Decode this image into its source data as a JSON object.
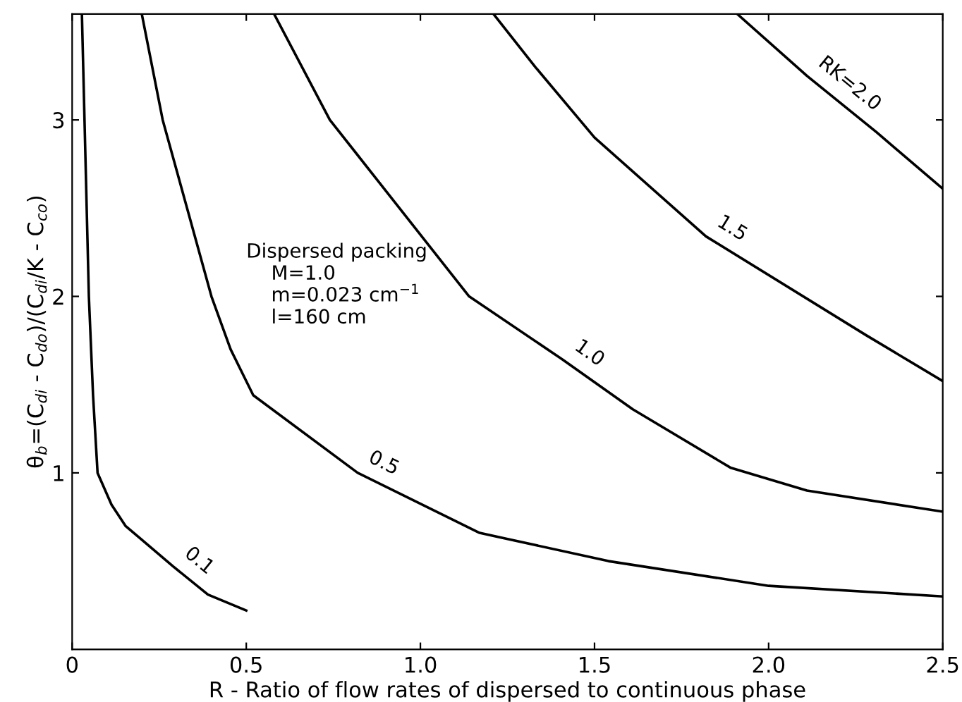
{
  "chart_data": {
    "type": "line",
    "xlabel": "R - Ratio of flow rates of dispersed to continuous phase",
    "ylabel": "θ$_{b}$=(C$_{di}$ - C$_{do}$)/(C$_{di}$/K - C$_{co}$)",
    "xlim": [
      0,
      2.5
    ],
    "ylim": [
      0,
      3.6
    ],
    "xticks": [
      0,
      {
        "value": 0.5,
        "label": "0.5"
      },
      {
        "value": 1,
        "label": "1.0"
      },
      1.5,
      {
        "value": 2,
        "label": "2.0"
      },
      2.5
    ],
    "yticks": [
      1,
      2,
      3
    ],
    "grid": false,
    "legend": false,
    "marker": "none",
    "line_style": "solid",
    "annotations": [
      "Dispersed packing\n    M=1.0\n    m=0.023 cm$^{−1}$\n    l=160 cm"
    ],
    "series": [
      {
        "name": "0.1",
        "color": "#000000",
        "x": [
          0.028,
          0.048,
          0.06,
          0.073,
          0.113,
          0.153,
          0.29,
          0.39,
          0.5
        ],
        "values": [
          3.6,
          2.0,
          1.44,
          1.0,
          0.82,
          0.7,
          0.47,
          0.31,
          0.22
        ]
      },
      {
        "name": "0.5",
        "color": "#000000",
        "x": [
          0.2,
          0.26,
          0.4,
          0.455,
          0.52,
          0.82,
          1.17,
          1.54,
          2.0,
          2.5
        ],
        "values": [
          3.6,
          3.0,
          2.0,
          1.7,
          1.44,
          1.0,
          0.66,
          0.5,
          0.36,
          0.3
        ]
      },
      {
        "name": "1.0",
        "color": "#000000",
        "x": [
          0.58,
          0.74,
          1.14,
          1.41,
          1.61,
          1.89,
          2.11,
          2.5
        ],
        "values": [
          3.6,
          3.0,
          2.0,
          1.64,
          1.36,
          1.03,
          0.9,
          0.78
        ]
      },
      {
        "name": "1.5",
        "color": "#000000",
        "x": [
          1.21,
          1.33,
          1.5,
          1.82,
          2.28,
          2.5
        ],
        "values": [
          3.6,
          3.3,
          2.9,
          2.34,
          1.78,
          1.52
        ]
      },
      {
        "name": "RK=2.0",
        "color": "#000000",
        "x": [
          1.91,
          2.11,
          2.31,
          2.5
        ],
        "values": [
          3.6,
          3.25,
          2.93,
          2.61
        ]
      }
    ]
  }
}
